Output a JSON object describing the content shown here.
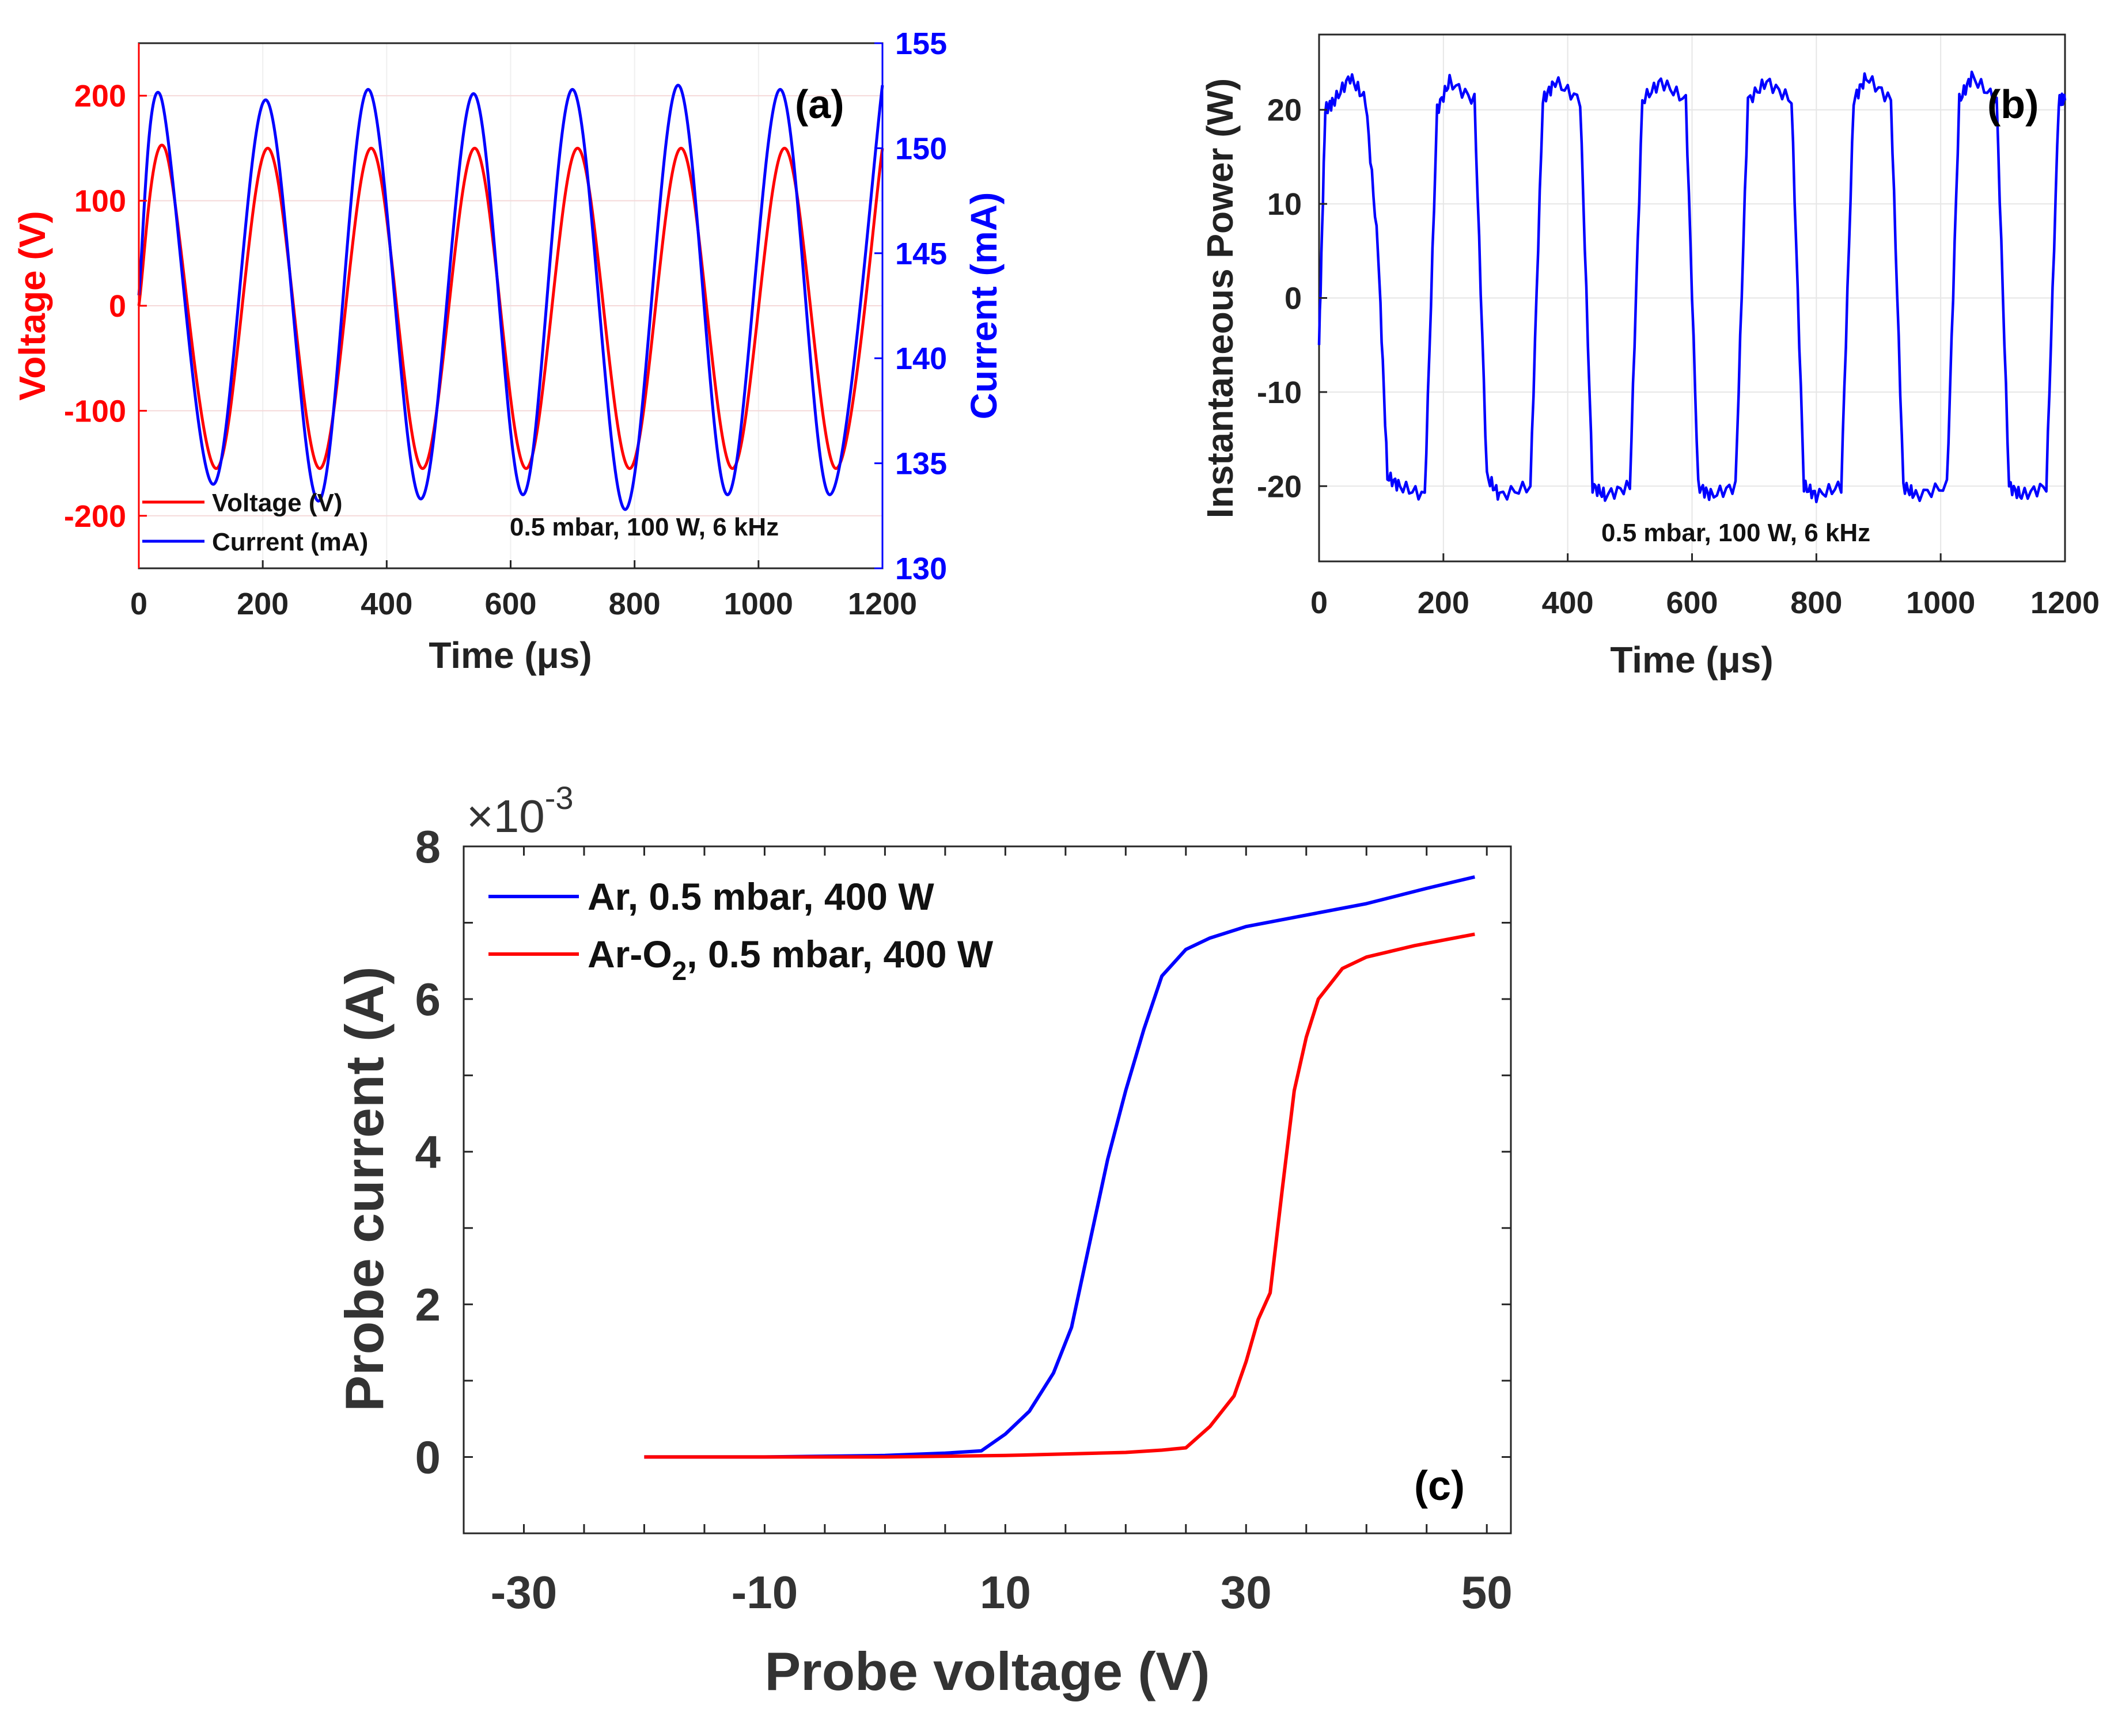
{
  "colors": {
    "voltage": "#ff0000",
    "current": "#0000ff",
    "axis": "#262626",
    "grid": "#e6e6e6",
    "series_blue": "#0000ff",
    "series_red": "#ff0000"
  },
  "chart_data": [
    {
      "id": "a",
      "type": "line",
      "panel_label": "(a)",
      "annotation": "0.5 mbar, 100 W, 6 kHz",
      "xlabel": "Time (μs)",
      "xlim": [
        0,
        1200
      ],
      "xticks": [
        0,
        200,
        400,
        600,
        800,
        1000,
        1200
      ],
      "ylabel_left": "Voltage (V)",
      "ylim_left": [
        -250,
        250
      ],
      "yticks_left": [
        -200,
        -100,
        0,
        100,
        200
      ],
      "ylabel_right": "Current (mA)",
      "ylim_right": [
        130,
        155
      ],
      "yticks_right": [
        130,
        135,
        140,
        145,
        150,
        155
      ],
      "grid": true,
      "legend": [
        "Voltage (V)",
        "Current (mA)"
      ],
      "series": [
        {
          "name": "Voltage (V)",
          "axis": "left",
          "color": "#ff0000",
          "x": [
            0,
            42,
            125,
            208,
            292,
            375,
            458,
            542,
            625,
            708,
            792,
            875,
            958,
            1042,
            1125,
            1200
          ],
          "y": [
            0,
            150,
            -155,
            150,
            -155,
            150,
            -155,
            150,
            -155,
            150,
            -155,
            150,
            -155,
            150,
            -155,
            150
          ]
        },
        {
          "name": "Current (mA)",
          "axis": "right",
          "color": "#0000ff",
          "x": [
            0,
            35,
            120,
            205,
            290,
            370,
            455,
            540,
            620,
            700,
            785,
            870,
            950,
            1035,
            1115,
            1200
          ],
          "y": [
            143,
            152.5,
            134,
            152.3,
            133.2,
            152.8,
            133.3,
            152.6,
            133.5,
            152.8,
            132.8,
            153,
            133.5,
            152.8,
            133.5,
            153
          ]
        }
      ]
    },
    {
      "id": "b",
      "type": "line",
      "panel_label": "(b)",
      "annotation": "0.5 mbar, 100 W, 6 kHz",
      "xlabel": "Time (μs)",
      "xlim": [
        0,
        1200
      ],
      "xticks": [
        0,
        200,
        400,
        600,
        800,
        1000,
        1200
      ],
      "ylabel": "Instantaneous Power (W)",
      "ylim": [
        -28,
        28
      ],
      "yticks": [
        -20,
        -10,
        0,
        10,
        20
      ],
      "grid": true,
      "series": [
        {
          "name": "Instantaneous Power (W)",
          "color": "#0000ff",
          "x": [
            0,
            10,
            25,
            50,
            75,
            95,
            110,
            130,
            170,
            190,
            210,
            250,
            270,
            290,
            340,
            360,
            380,
            420,
            440,
            460,
            500,
            520,
            550,
            590,
            610,
            630,
            670,
            690,
            720,
            760,
            780,
            800,
            840,
            860,
            880,
            920,
            940,
            960,
            1010,
            1030,
            1050,
            1090,
            1110,
            1130,
            1170,
            1190,
            1200
          ],
          "y": [
            -5,
            20,
            21,
            23.5,
            21,
            5,
            -19,
            -20,
            -21,
            20,
            23,
            21,
            -19,
            -21,
            -20,
            21,
            23,
            21,
            -20,
            -21,
            -20,
            21,
            23,
            21,
            -20,
            -21,
            -20,
            21,
            23,
            21,
            -20,
            -21,
            -20,
            21,
            23.5,
            21,
            -20,
            -21,
            -20,
            21,
            23.5,
            21,
            -20,
            -21,
            -20,
            21,
            21
          ]
        }
      ]
    },
    {
      "id": "c",
      "type": "line",
      "panel_label": "(c)",
      "xlabel": "Probe voltage (V)",
      "xlim": [
        -35,
        52
      ],
      "xticks": [
        -30,
        -10,
        10,
        30,
        50
      ],
      "ylabel": "Probe current (A)",
      "ylim": [
        -1,
        8
      ],
      "yticks": [
        0,
        2,
        4,
        6,
        8
      ],
      "y_multiplier": "×10",
      "y_exponent": "-3",
      "grid": false,
      "legend": [
        "Ar, 0.5 mbar, 400 W",
        "Ar-O₂, 0.5 mbar, 400 W"
      ],
      "legend_parts": {
        "red_prefix": "Ar-O",
        "red_sub": "2",
        "red_suffix": ", 0.5 mbar, 400 W"
      },
      "series": [
        {
          "name": "Ar, 0.5 mbar, 400 W",
          "color": "#0000ff",
          "x": [
            -20,
            -10,
            0,
            5,
            8,
            10,
            12,
            14,
            15.5,
            17,
            18.5,
            20,
            21.5,
            23,
            25,
            27,
            30,
            35,
            40,
            45,
            49
          ],
          "y": [
            0,
            0,
            0.02,
            0.05,
            0.08,
            0.3,
            0.6,
            1.1,
            1.7,
            2.8,
            3.9,
            4.8,
            5.6,
            6.3,
            6.65,
            6.8,
            6.95,
            7.1,
            7.25,
            7.45,
            7.6
          ]
        },
        {
          "name": "Ar-O2, 0.5 mbar, 400 W",
          "color": "#ff0000",
          "x": [
            -20,
            -10,
            0,
            10,
            20,
            23,
            25,
            27,
            29,
            30,
            31,
            32,
            33,
            34,
            35,
            36,
            37,
            38,
            40,
            44,
            49
          ],
          "y": [
            0,
            0,
            0,
            0.02,
            0.06,
            0.09,
            0.12,
            0.4,
            0.8,
            1.25,
            1.8,
            2.15,
            3.5,
            4.8,
            5.5,
            6.0,
            6.2,
            6.4,
            6.55,
            6.7,
            6.85
          ]
        }
      ]
    }
  ]
}
